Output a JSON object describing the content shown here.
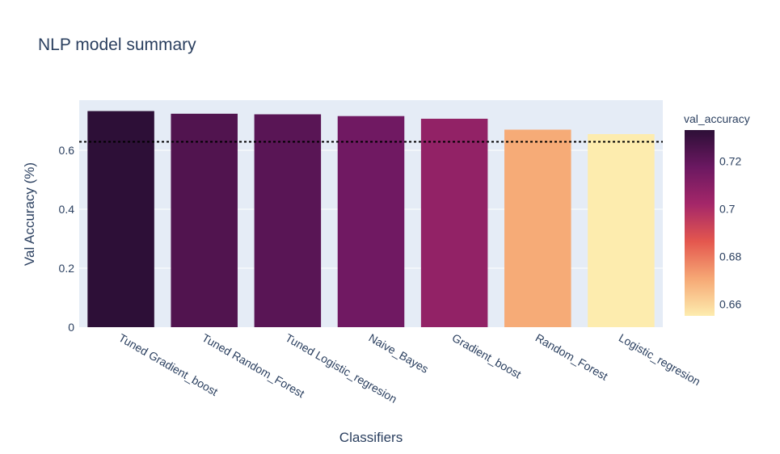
{
  "chart_data": {
    "type": "bar",
    "title": "NLP model summary",
    "xlabel": "Classifiers",
    "ylabel": "Val Accuracy (%)",
    "categories": [
      "Tuned Gradient_boost",
      "Tuned Random_Forest",
      "Tuned Logistic_regresion",
      "Naive_Bayes",
      "Gradient_boost",
      "Random_Forest",
      "Logistic_regresion"
    ],
    "values": [
      0.733,
      0.724,
      0.722,
      0.716,
      0.707,
      0.67,
      0.655
    ],
    "ylim": [
      0,
      0.77
    ],
    "yticks": [
      0,
      0.2,
      0.4,
      0.6
    ],
    "ytick_labels": [
      "0",
      "0.2",
      "0.4",
      "0.6"
    ],
    "reference_line": {
      "y": 0.629,
      "style": "dotted",
      "color": "#000000"
    },
    "grid": true,
    "plot_background": "#e5ecf6",
    "colorscale": {
      "title": "val_accuracy",
      "min": 0.655,
      "max": 0.733,
      "ticks": [
        0.66,
        0.68,
        0.7,
        0.72
      ],
      "tick_labels": [
        "0.66",
        "0.68",
        "0.7",
        "0.72"
      ],
      "colors": [
        "#fdecae",
        "#f6a875",
        "#e4574e",
        "#a52769",
        "#6b1861",
        "#2d0f37"
      ]
    }
  }
}
